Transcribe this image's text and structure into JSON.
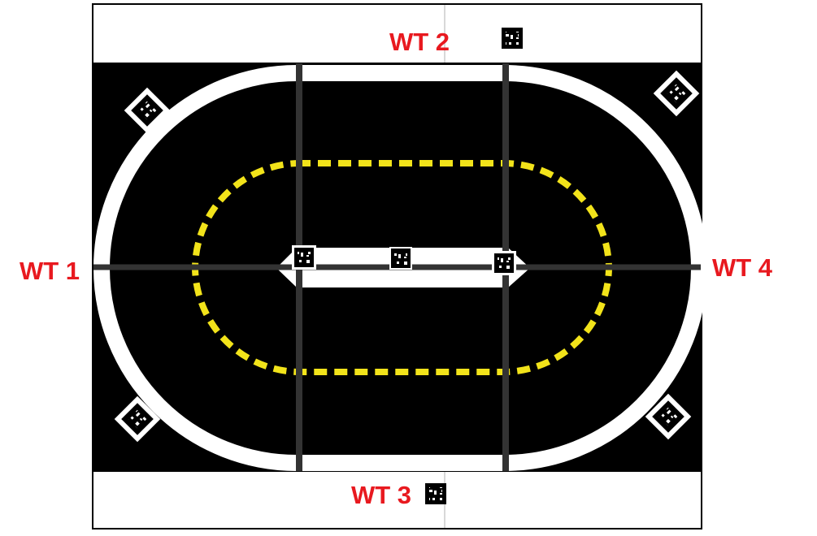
{
  "colors": {
    "track_surface": "#000000",
    "track_border": "#ffffff",
    "outer_frame": "#000000",
    "divider_lines": "#2a2a2a",
    "center_dashed_line": "#f2e31a",
    "label_text": "#e8191f",
    "marker_dark": "#000000",
    "marker_light": "#ffffff"
  },
  "labels": {
    "wt1": "WT 1",
    "wt2": "WT 2",
    "wt3": "WT 3",
    "wt4": "WT 4"
  },
  "icons": {
    "marker": "fiducial-marker-icon"
  }
}
